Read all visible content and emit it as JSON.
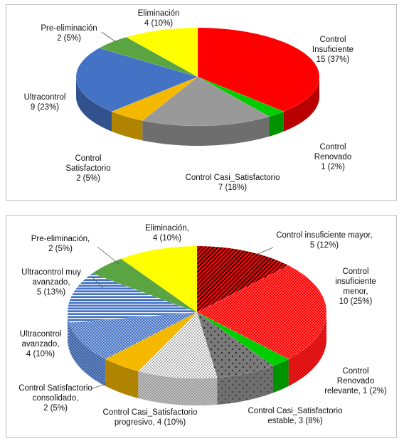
{
  "chart_data": [
    {
      "type": "pie",
      "style": "3d",
      "categories": [
        "Control Insuficiente",
        "Control Renovado",
        "Control Casi_Satisfactorio",
        "Control Satisfactorio",
        "Ultracontrol",
        "Pre-eliminación",
        "Eliminación"
      ],
      "values": [
        15,
        1,
        7,
        2,
        9,
        2,
        4
      ],
      "percents": [
        "37%",
        "2%",
        "18%",
        "5%",
        "23%",
        "5%",
        "10%"
      ],
      "colors": [
        "#ff0000",
        "#00cc00",
        "#999999",
        "#f5b800",
        "#4472c4",
        "#5aa542",
        "#ffff00"
      ],
      "labels": [
        [
          "Control",
          "Insuficiente",
          "15 (37%)"
        ],
        [
          "Control",
          "Renovado",
          "1 (2%)"
        ],
        [
          "Control Casi_Satisfactorio",
          "7 (18%)"
        ],
        [
          "Control",
          "Satisfactorio",
          "2 (5%)"
        ],
        [
          "Ultracontrol",
          "9 (23%)"
        ],
        [
          "Pre-eliminación",
          "2 (5%)"
        ],
        [
          "Eliminación",
          "4 (10%)"
        ]
      ]
    },
    {
      "type": "pie",
      "style": "3d",
      "categories": [
        "Control insuficiente mayor",
        "Control insuficiente menor",
        "Control Renovado relevante",
        "Control Casi_Satisfactorio estable",
        "Control Casi_Satisfactorio progresivo",
        "Control Satisfactorio consolidado",
        "Ultracontrol avanzado",
        "Ultracontrol muy avanzado",
        "Pre-eliminación",
        "Eliminación"
      ],
      "values": [
        5,
        10,
        1,
        3,
        4,
        2,
        4,
        5,
        2,
        4
      ],
      "percents": [
        "12%",
        "25%",
        "2%",
        "8%",
        "10%",
        "5%",
        "10%",
        "13%",
        "5%",
        "10%"
      ],
      "colors": [
        "#ff0000",
        "#ff0000",
        "#00cc00",
        "#888888",
        "#aaaaaa",
        "#f5b800",
        "#4472c4",
        "#4472c4",
        "#5aa542",
        "#ffff00"
      ],
      "patterns": [
        "stripe",
        "dots",
        "none",
        "sparse",
        "checker",
        "none",
        "dense",
        "hstripe",
        "none",
        "none"
      ],
      "labels": [
        [
          "Control insuficiente mayor,",
          "5 (12%)"
        ],
        [
          "Control",
          "insuficiente",
          "menor,",
          "10 (25%)"
        ],
        [
          "Control",
          "Renovado",
          "relevante, 1 (2%)"
        ],
        [
          "Control Casi_Satisfactorio",
          "estable, 3 (8%)"
        ],
        [
          "Control Casi_Satisfactorio",
          "progresivo, 4 (10%)"
        ],
        [
          "Control Satisfactorio",
          "consolidado,",
          "2 (5%)"
        ],
        [
          "Ultracontrol",
          "avanzado,",
          "4 (10%)"
        ],
        [
          "Ultracontrol muy",
          "avanzado,",
          "5 (13%)"
        ],
        [
          "Pre-eliminación,",
          "2 (5%)"
        ],
        [
          "Eliminación,",
          "4 (10%)"
        ]
      ]
    }
  ]
}
